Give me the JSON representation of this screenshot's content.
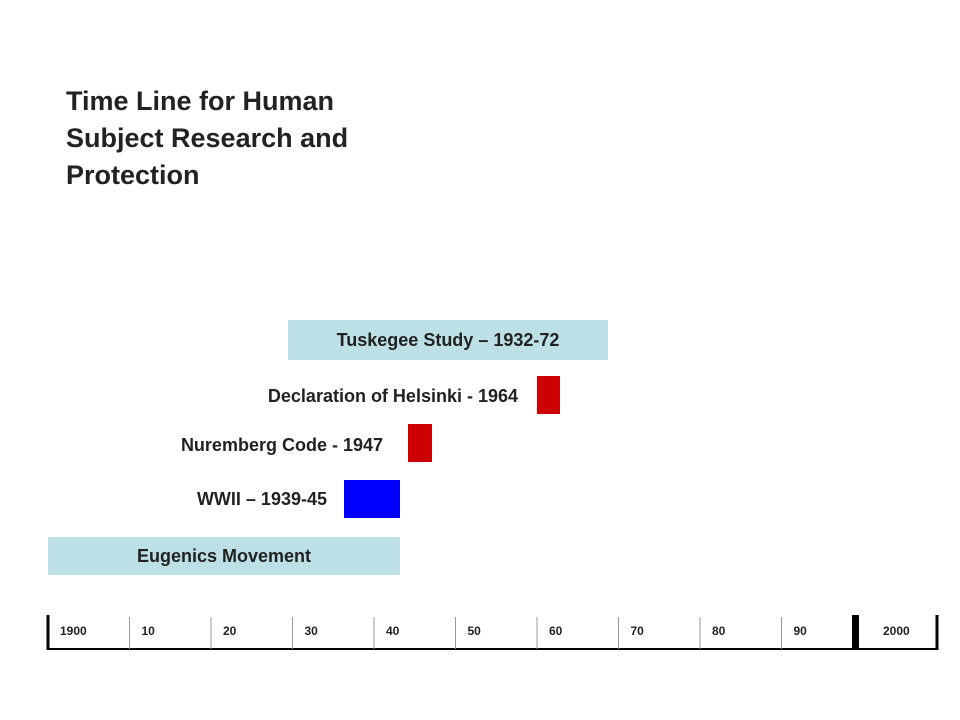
{
  "title": {
    "lines": [
      "Time Line for Human",
      "Subject Research and",
      "Protection"
    ]
  },
  "events": [
    {
      "label": "Tuskegee Study – 1932-72"
    },
    {
      "label": "Declaration of Helsinki - 1964"
    },
    {
      "label": "Nuremberg Code - 1947"
    },
    {
      "label": "WWII – 1939-45"
    },
    {
      "label": "Eugenics Movement"
    }
  ],
  "axis": {
    "labels": [
      "1900",
      "10",
      "20",
      "30",
      "40",
      "50",
      "60",
      "70",
      "80",
      "90",
      "2000"
    ]
  }
}
